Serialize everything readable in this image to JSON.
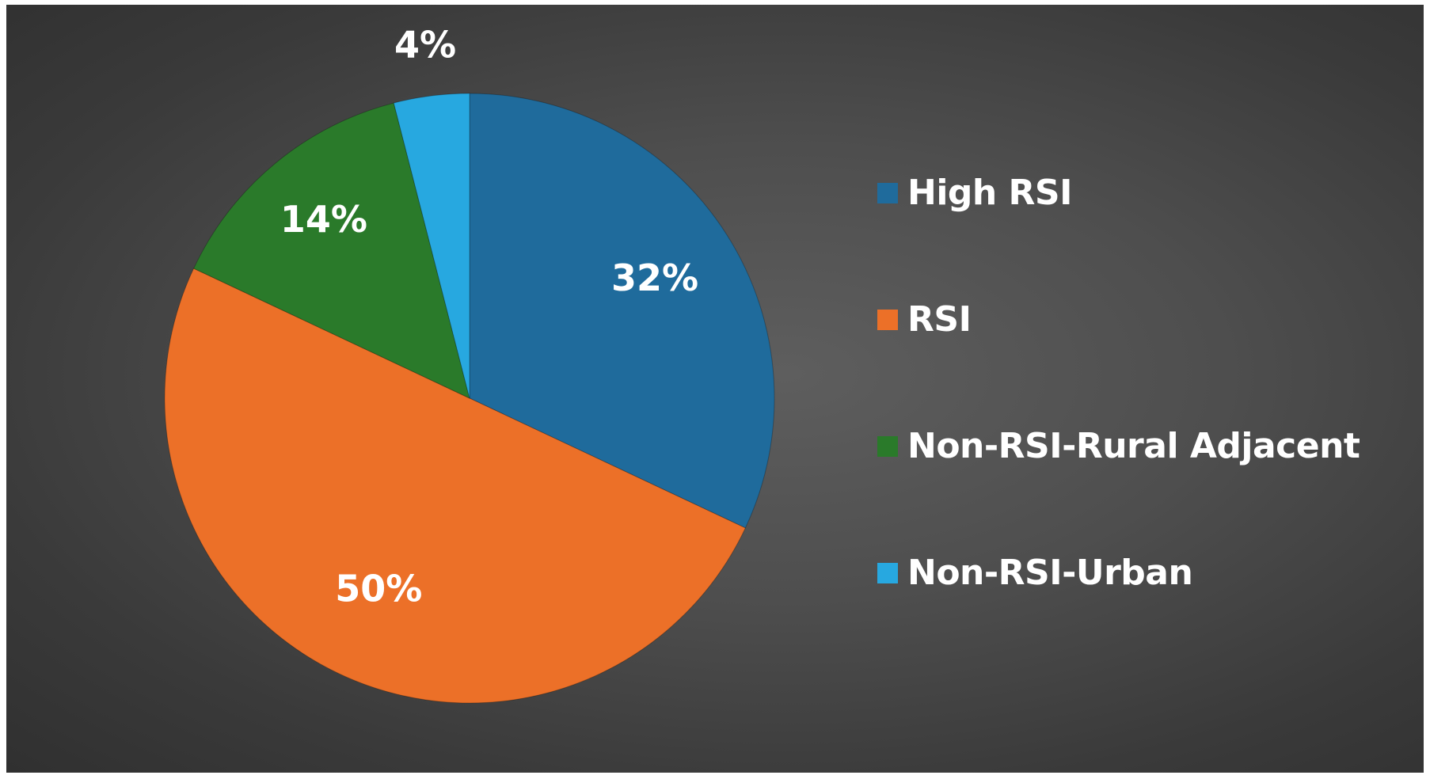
{
  "chart_data": {
    "type": "pie",
    "title": "",
    "slices": [
      {
        "label": "High RSI",
        "value": 32,
        "display": "32%",
        "color": "#1f6b9c"
      },
      {
        "label": "RSI",
        "value": 50,
        "display": "50%",
        "color": "#ec7028"
      },
      {
        "label": "Non-RSI-Rural Adjacent",
        "value": 14,
        "display": "14%",
        "color": "#2a7a2a"
      },
      {
        "label": "Non-RSI-Urban",
        "value": 4,
        "display": "4%",
        "color": "#27a8e0"
      }
    ],
    "start_angle_deg": 0,
    "direction": "clockwise",
    "legend_position": "right",
    "data_labels": true,
    "background_color": "#3f3f3f"
  }
}
